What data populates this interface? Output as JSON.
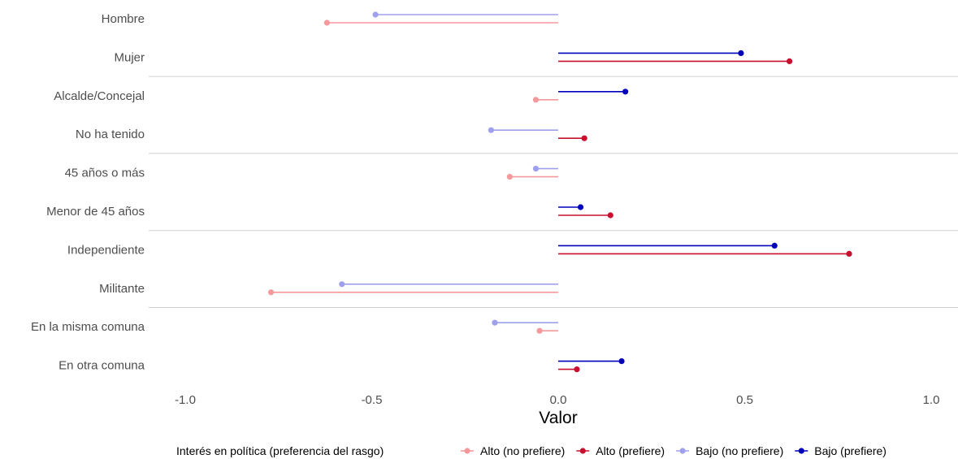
{
  "chart_data": {
    "type": "lollipop",
    "xlabel": "Valor",
    "ylabel": "",
    "xlim": [
      -1.0,
      1.0
    ],
    "xticks": [
      -1.0,
      -0.5,
      0.0,
      0.5,
      1.0
    ],
    "xtick_labels": [
      "-1.0",
      "-0.5",
      "0.0",
      "0.5",
      "1.0"
    ],
    "grid": false,
    "legend": {
      "placement": "bottom",
      "title": "Interés en política (preferencia del rasgo)"
    },
    "categories": [
      "Hombre",
      "Mujer",
      "Alcalde/Concejal",
      "No ha tenido",
      "45 años o más",
      "Menor de 45 años",
      "Independiente",
      "Militante",
      "En la misma comuna",
      "En otra comuna"
    ],
    "group_separators_after": [
      "Mujer",
      "No ha tenido",
      "Menor de 45 años",
      "Militante"
    ],
    "series": [
      {
        "name": "Alto (no prefiere)",
        "color": "#f4999b",
        "values": [
          -0.62,
          null,
          -0.06,
          null,
          -0.13,
          null,
          null,
          -0.77,
          -0.05,
          null
        ]
      },
      {
        "name": "Alto (prefiere)",
        "color": "#c8102e",
        "values": [
          null,
          0.62,
          null,
          0.07,
          null,
          0.14,
          0.78,
          null,
          null,
          0.05
        ]
      },
      {
        "name": "Bajo (no prefiere)",
        "color": "#9fa0ed",
        "values": [
          -0.49,
          null,
          null,
          -0.18,
          -0.06,
          null,
          null,
          -0.58,
          -0.17,
          null
        ]
      },
      {
        "name": "Bajo (prefiere)",
        "color": "#0000bb",
        "values": [
          null,
          0.49,
          0.18,
          null,
          null,
          0.06,
          0.58,
          null,
          null,
          0.17
        ]
      }
    ]
  }
}
